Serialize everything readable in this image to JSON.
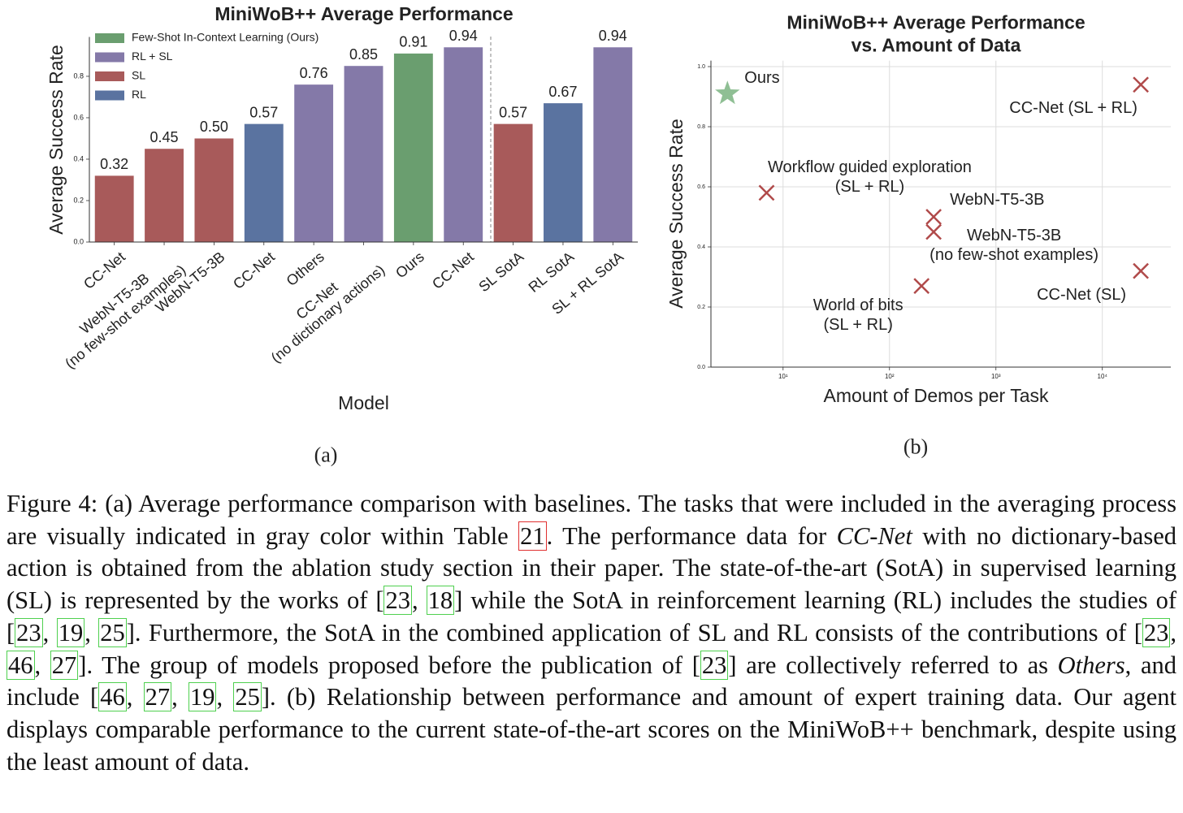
{
  "chart_data": [
    {
      "type": "bar",
      "title": "MiniWoB++ Average Performance",
      "xlabel": "Model",
      "ylabel": "Average Success Rate",
      "categories": [
        "CC-Net",
        "WebN-T5-3B\n(no few-shot examples)",
        "WebN-T5-3B",
        "CC-Net",
        "Others",
        "CC-Net\n(no dictionary actions)",
        "Ours",
        "CC-Net",
        "SL SotA",
        "RL SotA",
        "SL + RL SotA"
      ],
      "values": [
        0.32,
        0.45,
        0.5,
        0.57,
        0.76,
        0.85,
        0.91,
        0.94,
        0.57,
        0.67,
        0.94
      ],
      "value_labels": [
        "0.32",
        "0.45",
        "0.50",
        "0.57",
        "0.76",
        "0.85",
        "0.91",
        "0.94",
        "0.57",
        "0.67",
        "0.94"
      ],
      "colors": [
        "#a85a5a",
        "#a85a5a",
        "#a85a5a",
        "#5a73a0",
        "#8479a8",
        "#8479a8",
        "#6a9e6f",
        "#8479a8",
        "#a85a5a",
        "#5a73a0",
        "#8479a8"
      ],
      "legend": [
        {
          "name": "Few-Shot In-Context Learning (Ours)",
          "color": "#6a9e6f"
        },
        {
          "name": "RL + SL",
          "color": "#8479a8"
        },
        {
          "name": "SL",
          "color": "#a85a5a"
        },
        {
          "name": "RL",
          "color": "#5a73a0"
        }
      ],
      "legend_position": "upper left",
      "ylim": [
        0,
        0.99
      ],
      "yticks": [
        {
          "value": 0,
          "label": "0.0"
        },
        0.2,
        0.4,
        0.6,
        0.8
      ],
      "subcaption": "(a)"
    },
    {
      "type": "scatter",
      "title": "MiniWoB++ Average Performance\nvs. Amount of Data",
      "xlabel": "Amount of Demos per Task",
      "ylabel": "Average Success Rate",
      "x": [
        3,
        23000,
        7,
        260,
        260,
        200,
        23000
      ],
      "values": [
        0.91,
        0.94,
        0.58,
        0.5,
        0.45,
        0.27,
        0.32
      ],
      "point_labels": [
        "Ours",
        "CC-Net (SL + RL)",
        "Workflow guided exploration\n(SL + RL)",
        "WebN-T5-3B",
        "WebN-T5-3B\n(no few-shot examples)",
        "World of bits\n(SL + RL)",
        "CC-Net (SL)"
      ],
      "markers": [
        "star",
        "x",
        "x",
        "x",
        "x",
        "x",
        "x"
      ],
      "colors": [
        "#8fbf94",
        "#b04a4a",
        "#b04a4a",
        "#b04a4a",
        "#b04a4a",
        "#b04a4a",
        "#b04a4a"
      ],
      "xscale": "log",
      "xlim": [
        2.1,
        44000
      ],
      "xticks": [
        {
          "value": 10,
          "label": "10¹"
        },
        {
          "value": 100,
          "label": "10²"
        },
        {
          "value": 1000,
          "label": "10³"
        },
        {
          "value": 10000,
          "label": "10⁴"
        }
      ],
      "ylim": [
        0,
        1.02
      ],
      "yticks": [
        {
          "value": 0,
          "label": "0.0"
        },
        0.2,
        0.4,
        0.6,
        0.8,
        {
          "value": 1,
          "label": "1.0"
        }
      ],
      "grid": true,
      "subcaption": "(b)"
    }
  ],
  "caption": [
    "Figure 4: (a) Average performance comparison with baselines. The tasks that were included in the averaging process are visually indicated in gray color within Table ",
    {
      "table_ref": "21"
    },
    ". The performance data for ",
    {
      "em": "CC-Net"
    },
    " with no dictionary-based action is obtained from the ablation study section in their paper. The state-of-the-art (SotA) in supervised learning (SL) is represented by the works of [",
    {
      "cite": "23"
    },
    ", ",
    {
      "cite": "18"
    },
    "] while the SotA in reinforcement learning (RL) includes the studies of [",
    {
      "cite": "23"
    },
    ", ",
    {
      "cite": "19"
    },
    ", ",
    {
      "cite": "25"
    },
    "]. Furthermore, the SotA in the combined application of SL and RL consists of the contributions of [",
    {
      "cite": "23"
    },
    ", ",
    {
      "cite": "46"
    },
    ", ",
    {
      "cite": "27"
    },
    "]. The group of models proposed before the publication of [",
    {
      "cite": "23"
    },
    "] are collectively referred to as ",
    {
      "em": "Others"
    },
    ", and include [",
    {
      "cite": "46"
    },
    ", ",
    {
      "cite": "27"
    },
    ", ",
    {
      "cite": "19"
    },
    ", ",
    {
      "cite": "25"
    },
    "]. (b) Relationship between performance and amount of expert training data. Our agent displays comparable performance to the current state-of-the-art scores on the MiniWoB++ benchmark, despite using the least amount of data."
  ]
}
